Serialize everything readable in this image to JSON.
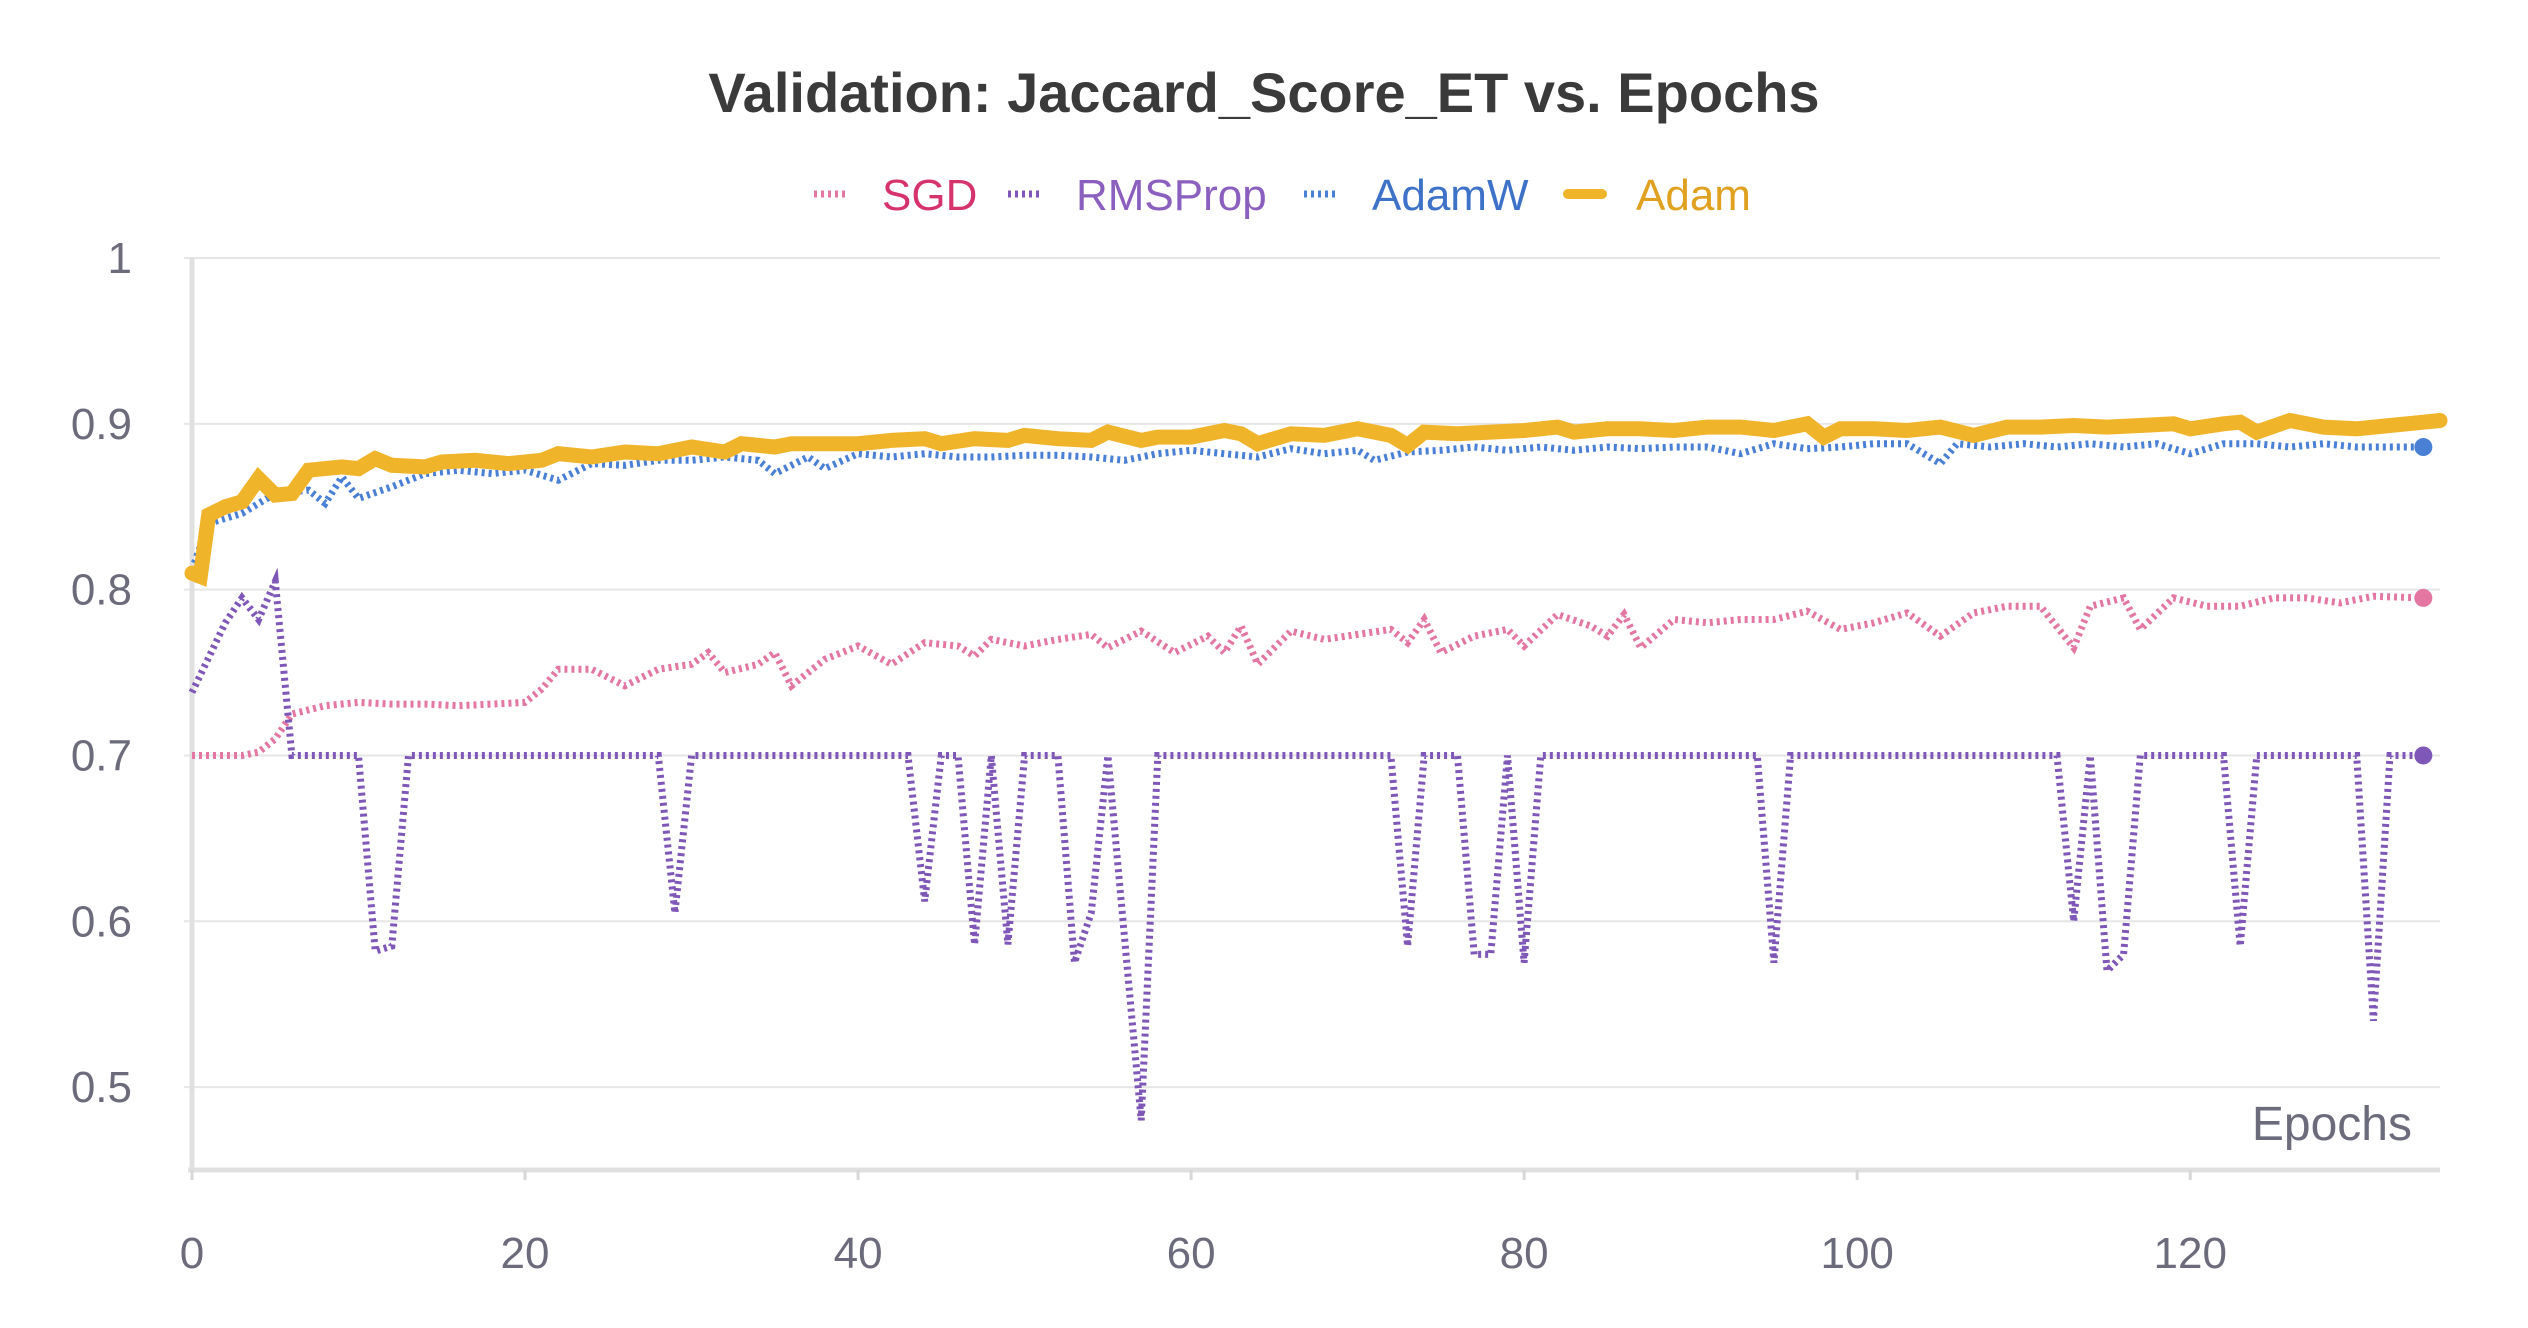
{
  "chart_data": {
    "type": "line",
    "title": "Validation: Jaccard_Score_ET vs. Epochs",
    "xlabel": "Epochs",
    "ylabel": "",
    "xlim": [
      0,
      135
    ],
    "ylim": [
      0.45,
      1.0
    ],
    "xticks": [
      0,
      20,
      40,
      60,
      80,
      100,
      120
    ],
    "x_tick_labels": [
      "0",
      "20",
      "40",
      "60",
      "80",
      "100",
      "120"
    ],
    "yticks": [
      0.5,
      0.6,
      0.7,
      0.8,
      0.9,
      1.0
    ],
    "y_tick_labels": [
      "0.5",
      "0.6",
      "0.7",
      "0.8",
      "0.9",
      "1"
    ],
    "grid": true,
    "legend_position": "top-center",
    "series": [
      {
        "name": "SGD",
        "color": "#e377a2",
        "text_color": "#d6336c",
        "style": "dotted",
        "end_marker": true,
        "points": [
          [
            0,
            0.7
          ],
          [
            3,
            0.7
          ],
          [
            4,
            0.702
          ],
          [
            5,
            0.71
          ],
          [
            6,
            0.725
          ],
          [
            8,
            0.73
          ],
          [
            10,
            0.732
          ],
          [
            12,
            0.731
          ],
          [
            14,
            0.731
          ],
          [
            16,
            0.73
          ],
          [
            18,
            0.731
          ],
          [
            20,
            0.732
          ],
          [
            21,
            0.74
          ],
          [
            22,
            0.752
          ],
          [
            24,
            0.752
          ],
          [
            26,
            0.742
          ],
          [
            28,
            0.752
          ],
          [
            30,
            0.755
          ],
          [
            31,
            0.762
          ],
          [
            32,
            0.75
          ],
          [
            34,
            0.755
          ],
          [
            35,
            0.762
          ],
          [
            36,
            0.742
          ],
          [
            38,
            0.758
          ],
          [
            40,
            0.766
          ],
          [
            42,
            0.755
          ],
          [
            44,
            0.768
          ],
          [
            46,
            0.766
          ],
          [
            47,
            0.76
          ],
          [
            48,
            0.77
          ],
          [
            50,
            0.766
          ],
          [
            52,
            0.77
          ],
          [
            54,
            0.773
          ],
          [
            55,
            0.765
          ],
          [
            57,
            0.775
          ],
          [
            59,
            0.762
          ],
          [
            61,
            0.772
          ],
          [
            62,
            0.762
          ],
          [
            63,
            0.778
          ],
          [
            64,
            0.755
          ],
          [
            66,
            0.775
          ],
          [
            68,
            0.77
          ],
          [
            70,
            0.773
          ],
          [
            72,
            0.776
          ],
          [
            73,
            0.768
          ],
          [
            74,
            0.782
          ],
          [
            75,
            0.762
          ],
          [
            77,
            0.772
          ],
          [
            79,
            0.776
          ],
          [
            80,
            0.766
          ],
          [
            82,
            0.785
          ],
          [
            84,
            0.778
          ],
          [
            85,
            0.772
          ],
          [
            86,
            0.785
          ],
          [
            87,
            0.765
          ],
          [
            89,
            0.782
          ],
          [
            91,
            0.78
          ],
          [
            93,
            0.782
          ],
          [
            95,
            0.782
          ],
          [
            97,
            0.787
          ],
          [
            99,
            0.776
          ],
          [
            101,
            0.78
          ],
          [
            103,
            0.786
          ],
          [
            105,
            0.772
          ],
          [
            107,
            0.786
          ],
          [
            109,
            0.79
          ],
          [
            111,
            0.79
          ],
          [
            113,
            0.765
          ],
          [
            114,
            0.79
          ],
          [
            116,
            0.795
          ],
          [
            117,
            0.776
          ],
          [
            119,
            0.795
          ],
          [
            121,
            0.79
          ],
          [
            123,
            0.79
          ],
          [
            125,
            0.795
          ],
          [
            127,
            0.795
          ],
          [
            129,
            0.792
          ],
          [
            131,
            0.796
          ],
          [
            134,
            0.795
          ]
        ]
      },
      {
        "name": "RMSProp",
        "color": "#7e57b8",
        "text_color": "#8b5fbf",
        "style": "dotted",
        "end_marker": true,
        "points": [
          [
            0,
            0.738
          ],
          [
            2,
            0.78
          ],
          [
            3,
            0.795
          ],
          [
            4,
            0.782
          ],
          [
            5,
            0.805
          ],
          [
            6,
            0.7
          ],
          [
            10,
            0.7
          ],
          [
            11,
            0.582
          ],
          [
            12,
            0.585
          ],
          [
            13,
            0.7
          ],
          [
            28,
            0.7
          ],
          [
            29,
            0.605
          ],
          [
            30,
            0.7
          ],
          [
            43,
            0.7
          ],
          [
            44,
            0.612
          ],
          [
            45,
            0.7
          ],
          [
            46,
            0.7
          ],
          [
            47,
            0.586
          ],
          [
            48,
            0.7
          ],
          [
            49,
            0.586
          ],
          [
            50,
            0.7
          ],
          [
            52,
            0.7
          ],
          [
            53,
            0.575
          ],
          [
            54,
            0.605
          ],
          [
            55,
            0.7
          ],
          [
            57,
            0.48
          ],
          [
            58,
            0.7
          ],
          [
            72,
            0.7
          ],
          [
            73,
            0.585
          ],
          [
            74,
            0.7
          ],
          [
            76,
            0.7
          ],
          [
            77,
            0.58
          ],
          [
            78,
            0.58
          ],
          [
            79,
            0.7
          ],
          [
            80,
            0.575
          ],
          [
            81,
            0.7
          ],
          [
            94,
            0.7
          ],
          [
            95,
            0.575
          ],
          [
            96,
            0.7
          ],
          [
            112,
            0.7
          ],
          [
            113,
            0.6
          ],
          [
            114,
            0.7
          ],
          [
            115,
            0.57
          ],
          [
            116,
            0.58
          ],
          [
            117,
            0.7
          ],
          [
            122,
            0.7
          ],
          [
            123,
            0.585
          ],
          [
            124,
            0.7
          ],
          [
            130,
            0.7
          ],
          [
            131,
            0.54
          ],
          [
            132,
            0.7
          ],
          [
            134,
            0.7
          ]
        ]
      },
      {
        "name": "AdamW",
        "color": "#4a7fd6",
        "text_color": "#3e72c9",
        "style": "dotted",
        "end_marker": true,
        "points": [
          [
            0,
            0.812
          ],
          [
            1,
            0.84
          ],
          [
            3,
            0.846
          ],
          [
            5,
            0.858
          ],
          [
            7,
            0.86
          ],
          [
            8,
            0.852
          ],
          [
            9,
            0.868
          ],
          [
            10,
            0.855
          ],
          [
            12,
            0.862
          ],
          [
            14,
            0.87
          ],
          [
            16,
            0.872
          ],
          [
            18,
            0.87
          ],
          [
            20,
            0.872
          ],
          [
            22,
            0.866
          ],
          [
            24,
            0.876
          ],
          [
            26,
            0.875
          ],
          [
            28,
            0.878
          ],
          [
            30,
            0.878
          ],
          [
            32,
            0.88
          ],
          [
            34,
            0.878
          ],
          [
            35,
            0.87
          ],
          [
            37,
            0.88
          ],
          [
            38,
            0.873
          ],
          [
            40,
            0.882
          ],
          [
            42,
            0.88
          ],
          [
            44,
            0.882
          ],
          [
            46,
            0.88
          ],
          [
            48,
            0.88
          ],
          [
            50,
            0.881
          ],
          [
            52,
            0.881
          ],
          [
            54,
            0.88
          ],
          [
            56,
            0.878
          ],
          [
            58,
            0.882
          ],
          [
            60,
            0.884
          ],
          [
            62,
            0.882
          ],
          [
            64,
            0.88
          ],
          [
            66,
            0.885
          ],
          [
            68,
            0.882
          ],
          [
            70,
            0.884
          ],
          [
            71,
            0.878
          ],
          [
            73,
            0.883
          ],
          [
            75,
            0.884
          ],
          [
            77,
            0.886
          ],
          [
            79,
            0.884
          ],
          [
            81,
            0.886
          ],
          [
            83,
            0.884
          ],
          [
            85,
            0.886
          ],
          [
            87,
            0.885
          ],
          [
            89,
            0.886
          ],
          [
            91,
            0.886
          ],
          [
            93,
            0.882
          ],
          [
            95,
            0.888
          ],
          [
            97,
            0.885
          ],
          [
            99,
            0.886
          ],
          [
            101,
            0.888
          ],
          [
            103,
            0.888
          ],
          [
            105,
            0.876
          ],
          [
            106,
            0.888
          ],
          [
            108,
            0.886
          ],
          [
            110,
            0.888
          ],
          [
            112,
            0.886
          ],
          [
            114,
            0.888
          ],
          [
            116,
            0.886
          ],
          [
            118,
            0.888
          ],
          [
            120,
            0.882
          ],
          [
            122,
            0.888
          ],
          [
            124,
            0.888
          ],
          [
            126,
            0.886
          ],
          [
            128,
            0.888
          ],
          [
            130,
            0.886
          ],
          [
            132,
            0.886
          ],
          [
            134,
            0.886
          ]
        ]
      },
      {
        "name": "Adam",
        "color": "#f0b42b",
        "text_color": "#e0a020",
        "style": "solid",
        "end_marker": false,
        "points": [
          [
            0,
            0.81
          ],
          [
            0.5,
            0.808
          ],
          [
            1,
            0.845
          ],
          [
            2,
            0.85
          ],
          [
            3,
            0.853
          ],
          [
            4,
            0.867
          ],
          [
            5,
            0.857
          ],
          [
            6,
            0.858
          ],
          [
            7,
            0.872
          ],
          [
            9,
            0.874
          ],
          [
            10,
            0.873
          ],
          [
            11,
            0.879
          ],
          [
            12,
            0.875
          ],
          [
            14,
            0.874
          ],
          [
            15,
            0.877
          ],
          [
            17,
            0.878
          ],
          [
            19,
            0.876
          ],
          [
            21,
            0.878
          ],
          [
            22,
            0.882
          ],
          [
            24,
            0.88
          ],
          [
            26,
            0.883
          ],
          [
            28,
            0.882
          ],
          [
            30,
            0.886
          ],
          [
            32,
            0.883
          ],
          [
            33,
            0.888
          ],
          [
            35,
            0.886
          ],
          [
            36,
            0.888
          ],
          [
            38,
            0.888
          ],
          [
            40,
            0.888
          ],
          [
            42,
            0.89
          ],
          [
            44,
            0.891
          ],
          [
            45,
            0.888
          ],
          [
            47,
            0.891
          ],
          [
            49,
            0.89
          ],
          [
            50,
            0.893
          ],
          [
            52,
            0.891
          ],
          [
            54,
            0.89
          ],
          [
            55,
            0.895
          ],
          [
            57,
            0.89
          ],
          [
            58,
            0.892
          ],
          [
            60,
            0.892
          ],
          [
            62,
            0.896
          ],
          [
            63,
            0.894
          ],
          [
            64,
            0.888
          ],
          [
            66,
            0.894
          ],
          [
            68,
            0.893
          ],
          [
            70,
            0.897
          ],
          [
            72,
            0.893
          ],
          [
            73,
            0.887
          ],
          [
            74,
            0.895
          ],
          [
            76,
            0.894
          ],
          [
            78,
            0.895
          ],
          [
            80,
            0.896
          ],
          [
            82,
            0.898
          ],
          [
            83,
            0.895
          ],
          [
            85,
            0.897
          ],
          [
            87,
            0.897
          ],
          [
            89,
            0.896
          ],
          [
            91,
            0.898
          ],
          [
            93,
            0.898
          ],
          [
            95,
            0.896
          ],
          [
            97,
            0.9
          ],
          [
            98,
            0.892
          ],
          [
            99,
            0.897
          ],
          [
            101,
            0.897
          ],
          [
            103,
            0.896
          ],
          [
            105,
            0.898
          ],
          [
            107,
            0.893
          ],
          [
            109,
            0.898
          ],
          [
            111,
            0.898
          ],
          [
            113,
            0.899
          ],
          [
            115,
            0.898
          ],
          [
            117,
            0.899
          ],
          [
            119,
            0.9
          ],
          [
            120,
            0.897
          ],
          [
            122,
            0.9
          ],
          [
            123,
            0.901
          ],
          [
            124,
            0.895
          ],
          [
            126,
            0.902
          ],
          [
            128,
            0.898
          ],
          [
            130,
            0.897
          ],
          [
            132,
            0.899
          ],
          [
            134,
            0.901
          ],
          [
            135,
            0.902
          ]
        ]
      }
    ]
  }
}
